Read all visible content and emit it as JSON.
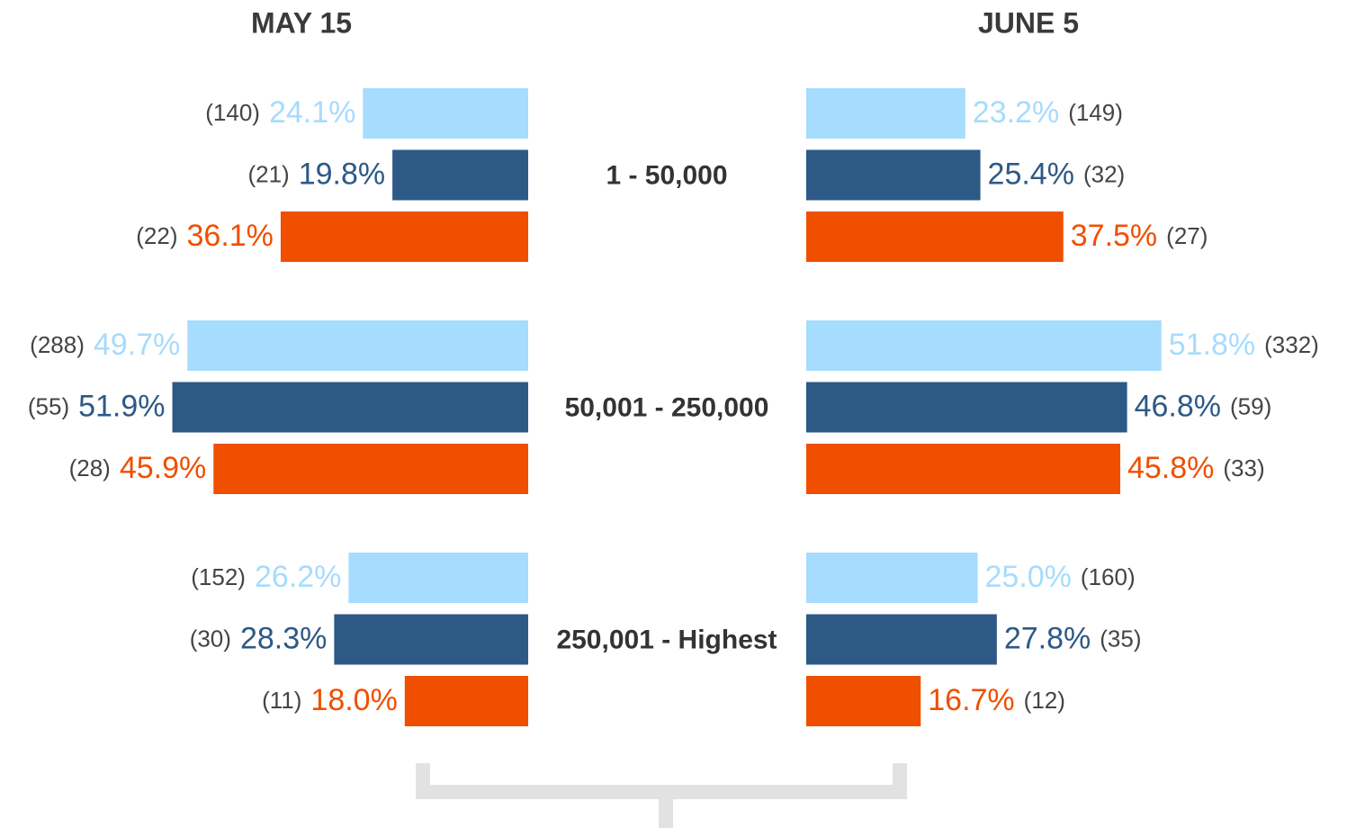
{
  "chart_data": {
    "type": "butterfly",
    "categories": [
      "1 - 50,000",
      "50,001 - 250,000",
      "250,001 - Highest"
    ],
    "panels": [
      {
        "title": "MAY 15",
        "series": [
          {
            "color": "#a6dcfd",
            "values": [
              24.1,
              49.7,
              26.2
            ],
            "value_labels": [
              "24.1%",
              "49.7%",
              "26.2%"
            ],
            "count_labels": [
              "(140)",
              "(288)",
              "(152)"
            ]
          },
          {
            "color": "#2d5986",
            "values": [
              19.8,
              51.9,
              28.3
            ],
            "value_labels": [
              "19.8%",
              "51.9%",
              "28.3%"
            ],
            "count_labels": [
              "(21)",
              "(55)",
              "(30)"
            ]
          },
          {
            "color": "#f04f00",
            "values": [
              36.1,
              45.9,
              18
            ],
            "value_labels": [
              "36.1%",
              "45.9%",
              "18.0%"
            ],
            "count_labels": [
              "(22)",
              "(28)",
              "(11)"
            ]
          }
        ]
      },
      {
        "title": "JUNE 5",
        "series": [
          {
            "color": "#a6dcfd",
            "values": [
              23.2,
              51.8,
              25
            ],
            "value_labels": [
              "23.2%",
              "51.8%",
              "25.0%"
            ],
            "count_labels": [
              "(149)",
              "(332)",
              "(160)"
            ]
          },
          {
            "color": "#2d5986",
            "values": [
              25.4,
              46.8,
              27.8
            ],
            "value_labels": [
              "25.4%",
              "46.8%",
              "27.8%"
            ],
            "count_labels": [
              "(32)",
              "(59)",
              "(35)"
            ]
          },
          {
            "color": "#f04f00",
            "values": [
              37.5,
              45.8,
              16.7
            ],
            "value_labels": [
              "37.5%",
              "45.8%",
              "16.7%"
            ],
            "count_labels": [
              "(27)",
              "(33)",
              "(12)"
            ]
          }
        ]
      }
    ]
  }
}
